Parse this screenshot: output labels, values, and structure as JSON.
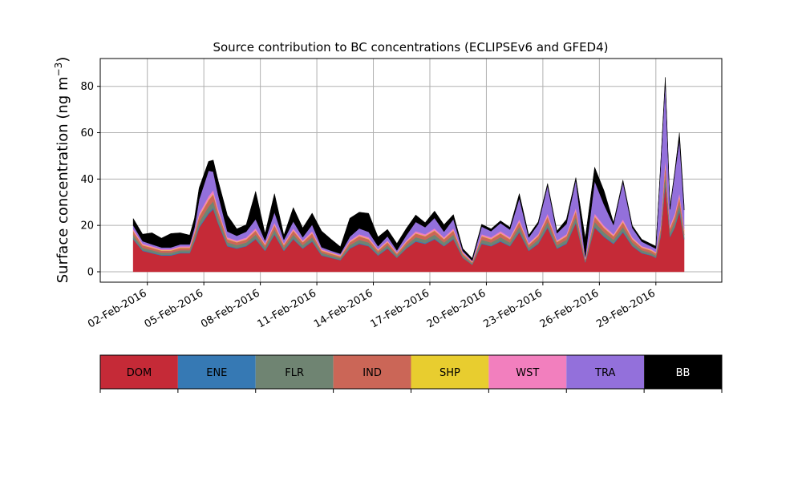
{
  "chart_data": {
    "type": "area",
    "stacked": true,
    "title": "Source contribution to BC concentrations (ECLIPSEv6 and GFED4)",
    "ylabel": "Surface concentration (ng m",
    "ylabel_sup": "−3",
    "ylabel_end": ")",
    "ylim": [
      -4.5,
      92
    ],
    "xlim": [
      "2016-01-30T12:00",
      "2016-03-03T12:00"
    ],
    "yticks": [
      0,
      20,
      40,
      60,
      80
    ],
    "xticks": [
      "2016-02-02",
      "2016-02-05",
      "2016-02-08",
      "2016-02-11",
      "2016-02-14",
      "2016-02-17",
      "2016-02-20",
      "2016-02-23",
      "2016-02-26",
      "2016-02-29"
    ],
    "xtick_labels": [
      "02-Feb-2016",
      "05-Feb-2016",
      "08-Feb-2016",
      "11-Feb-2016",
      "14-Feb-2016",
      "17-Feb-2016",
      "20-Feb-2016",
      "23-Feb-2016",
      "26-Feb-2016",
      "29-Feb-2016"
    ],
    "grid": true,
    "legend": "colorbar-below",
    "time": [
      "2016-02-01T06:00",
      "2016-02-01T18:00",
      "2016-02-02T06:00",
      "2016-02-02T18:00",
      "2016-02-03T06:00",
      "2016-02-03T18:00",
      "2016-02-04T06:00",
      "2016-02-04T12:00",
      "2016-02-04T18:00",
      "2016-02-05T06:00",
      "2016-02-05T12:00",
      "2016-02-05T18:00",
      "2016-02-06T06:00",
      "2016-02-06T18:00",
      "2016-02-07T06:00",
      "2016-02-07T18:00",
      "2016-02-08T06:00",
      "2016-02-08T18:00",
      "2016-02-09T06:00",
      "2016-02-09T18:00",
      "2016-02-10T06:00",
      "2016-02-10T18:00",
      "2016-02-11T06:00",
      "2016-02-11T18:00",
      "2016-02-12T06:00",
      "2016-02-12T18:00",
      "2016-02-13T06:00",
      "2016-02-13T18:00",
      "2016-02-14T06:00",
      "2016-02-14T18:00",
      "2016-02-15T06:00",
      "2016-02-15T18:00",
      "2016-02-16T06:00",
      "2016-02-16T18:00",
      "2016-02-17T06:00",
      "2016-02-17T18:00",
      "2016-02-18T06:00",
      "2016-02-18T18:00",
      "2016-02-19T06:00",
      "2016-02-19T18:00",
      "2016-02-20T06:00",
      "2016-02-20T18:00",
      "2016-02-21T06:00",
      "2016-02-21T18:00",
      "2016-02-22T06:00",
      "2016-02-22T18:00",
      "2016-02-23T06:00",
      "2016-02-23T18:00",
      "2016-02-24T06:00",
      "2016-02-24T18:00",
      "2016-02-25T06:00",
      "2016-02-25T18:00",
      "2016-02-26T06:00",
      "2016-02-26T18:00",
      "2016-02-27T06:00",
      "2016-02-27T18:00",
      "2016-02-28T06:00",
      "2016-02-28T18:00",
      "2016-02-29T00:00",
      "2016-02-29T06:00",
      "2016-02-29T12:00",
      "2016-02-29T18:00",
      "2016-03-01T00:00",
      "2016-03-01T06:00",
      "2016-03-01T12:00"
    ],
    "series": [
      {
        "name": "DOM",
        "color": "#c52a37",
        "values": [
          14,
          9,
          8,
          7,
          7,
          8,
          8,
          13,
          19,
          25,
          27,
          21,
          11,
          10,
          11,
          14,
          9,
          16,
          9,
          14,
          10,
          13,
          7,
          6,
          5,
          10,
          12,
          11,
          7,
          10,
          6,
          10,
          13,
          12,
          14,
          11,
          14,
          6,
          3,
          12,
          11,
          13,
          11,
          17,
          9,
          12,
          19,
          10,
          12,
          21,
          4,
          19,
          15,
          12,
          17,
          11,
          8,
          7,
          6,
          15,
          38,
          15,
          19,
          26,
          14
        ]
      },
      {
        "name": "ENE",
        "color": "#3679b4",
        "values": [
          0.4,
          0.3,
          0.3,
          0.3,
          0.3,
          0.3,
          0.3,
          0.4,
          0.5,
          0.6,
          0.6,
          0.5,
          0.4,
          0.3,
          0.3,
          0.4,
          0.3,
          0.4,
          0.3,
          0.4,
          0.3,
          0.4,
          0.3,
          0.2,
          0.2,
          0.3,
          0.4,
          0.3,
          0.3,
          0.3,
          0.2,
          0.3,
          0.4,
          0.4,
          0.4,
          0.3,
          0.4,
          0.2,
          0.1,
          0.4,
          0.3,
          0.4,
          0.3,
          0.5,
          0.3,
          0.4,
          0.5,
          0.3,
          0.4,
          0.5,
          0.2,
          0.5,
          0.4,
          0.4,
          0.5,
          0.3,
          0.3,
          0.2,
          0.2,
          0.4,
          1,
          0.4,
          0.5,
          0.7,
          0.4
        ]
      },
      {
        "name": "FLR",
        "color": "#6f8472",
        "values": [
          1.5,
          1,
          1,
          0.9,
          0.9,
          1,
          1,
          1.5,
          2,
          2.5,
          2.8,
          2.2,
          1.3,
          1.2,
          1.3,
          1.6,
          1.1,
          1.8,
          1.1,
          1.6,
          1.2,
          1.5,
          0.9,
          0.8,
          0.7,
          1.2,
          1.4,
          1.3,
          0.9,
          1.2,
          0.8,
          1.2,
          1.5,
          1.4,
          1.6,
          1.3,
          1.6,
          0.8,
          0.5,
          1.4,
          1.3,
          1.5,
          1.3,
          1.9,
          1.1,
          1.4,
          2,
          1.2,
          1.4,
          2.2,
          0.6,
          2,
          1.6,
          1.4,
          1.8,
          1.3,
          1,
          0.9,
          0.8,
          1.6,
          3.5,
          1.6,
          2,
          2.6,
          1.5
        ]
      },
      {
        "name": "IND",
        "color": "#cb6657",
        "values": [
          1.6,
          1.1,
          1,
          0.9,
          0.9,
          1,
          1,
          1.6,
          2.3,
          2.8,
          3,
          2.4,
          1.3,
          1.2,
          1.3,
          1.7,
          1.1,
          1.9,
          1.1,
          1.7,
          1.2,
          1.6,
          0.9,
          0.8,
          0.7,
          1.2,
          1.5,
          1.4,
          0.9,
          1.2,
          0.8,
          1.2,
          1.6,
          1.5,
          1.7,
          1.4,
          1.7,
          0.8,
          0.5,
          1.5,
          1.4,
          1.6,
          1.4,
          2,
          1.2,
          1.5,
          2.2,
          1.3,
          1.5,
          2.4,
          0.6,
          2.2,
          1.8,
          1.5,
          2,
          1.4,
          1.1,
          1,
          0.9,
          1.8,
          4,
          1.8,
          2.2,
          2.9,
          1.7
        ]
      },
      {
        "name": "SHP",
        "color": "#e8cd2f",
        "values": [
          0.2,
          0.2,
          0.2,
          0.2,
          0.2,
          0.2,
          0.2,
          0.2,
          0.3,
          0.3,
          0.3,
          0.3,
          0.2,
          0.2,
          0.2,
          0.2,
          0.2,
          0.2,
          0.2,
          0.2,
          0.2,
          0.2,
          0.2,
          0.2,
          0.2,
          0.2,
          0.2,
          0.2,
          0.2,
          0.2,
          0.2,
          0.2,
          0.2,
          0.2,
          0.2,
          0.2,
          0.2,
          0.2,
          0.1,
          0.2,
          0.2,
          0.2,
          0.2,
          0.3,
          0.2,
          0.2,
          0.3,
          0.2,
          0.2,
          0.3,
          0.1,
          0.3,
          0.2,
          0.2,
          0.3,
          0.2,
          0.2,
          0.2,
          0.2,
          0.2,
          0.4,
          0.2,
          0.3,
          0.3,
          0.2
        ]
      },
      {
        "name": "WST",
        "color": "#f27fbe",
        "values": [
          0.8,
          0.6,
          0.5,
          0.5,
          0.5,
          0.5,
          0.5,
          0.8,
          1.1,
          1.4,
          1.5,
          1.2,
          0.7,
          0.6,
          0.7,
          0.8,
          0.6,
          0.9,
          0.6,
          0.8,
          0.6,
          0.8,
          0.5,
          0.4,
          0.4,
          0.6,
          0.7,
          0.7,
          0.5,
          0.6,
          0.4,
          0.6,
          0.8,
          0.7,
          0.8,
          0.7,
          0.8,
          0.4,
          0.3,
          0.7,
          0.7,
          0.8,
          0.7,
          1,
          0.6,
          0.7,
          1.1,
          0.6,
          0.7,
          1.2,
          0.3,
          1.1,
          0.9,
          0.7,
          1,
          0.7,
          0.5,
          0.5,
          0.4,
          0.9,
          2,
          0.9,
          1.1,
          1.5,
          0.8
        ]
      },
      {
        "name": "TRA",
        "color": "#9370db",
        "values": [
          1.5,
          1,
          0.8,
          0.7,
          0.7,
          0.8,
          0.8,
          1.5,
          6,
          11,
          8,
          6,
          2.5,
          2,
          2.5,
          4,
          1.2,
          4.5,
          1.5,
          3,
          1.4,
          2.8,
          0.8,
          0.7,
          0.6,
          1.6,
          2.5,
          2.3,
          1.2,
          1.8,
          0.8,
          2.2,
          4,
          3,
          4.5,
          2.4,
          4,
          0.6,
          0.3,
          3.3,
          2.6,
          3.5,
          3.3,
          9,
          2.4,
          4.3,
          12,
          3,
          4.4,
          12,
          0.7,
          14,
          9,
          4,
          16,
          4,
          1.9,
          1.2,
          1.5,
          25,
          33,
          7,
          17,
          23,
          8
        ]
      },
      {
        "name": "BB",
        "color": "#000000",
        "values": [
          3,
          3,
          5,
          4,
          6,
          5,
          4,
          4,
          5,
          4,
          5,
          6,
          7,
          3,
          3,
          12,
          3,
          8,
          2,
          6,
          4,
          5,
          7,
          5,
          3,
          8,
          7,
          8,
          4,
          3,
          3,
          3,
          3,
          2,
          3,
          3,
          2,
          1,
          1,
          1,
          1,
          1,
          1,
          2,
          1,
          1,
          1,
          1,
          2,
          1,
          8,
          6,
          6,
          1,
          1,
          1,
          1,
          1,
          1,
          1,
          2,
          1,
          1,
          3,
          2
        ]
      }
    ]
  }
}
